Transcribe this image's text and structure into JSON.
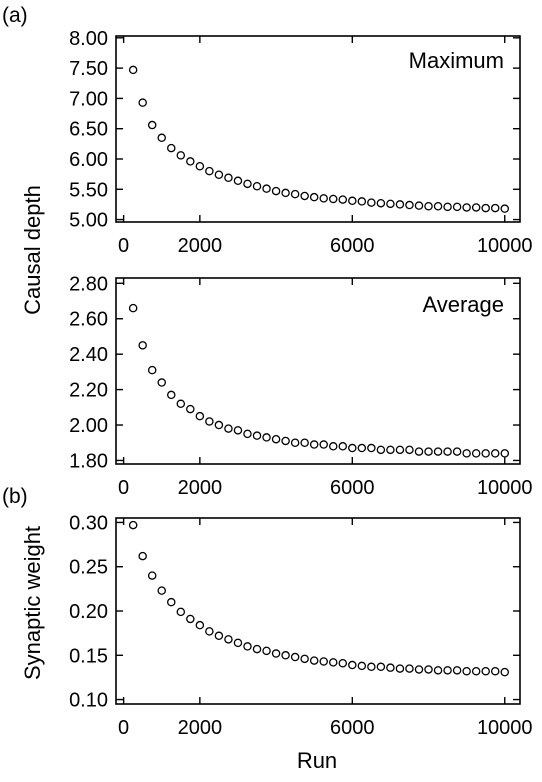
{
  "figure_labels": {
    "a": "(a)",
    "b": "(b)"
  },
  "y_titles": {
    "causal_depth": "Causal depth",
    "synaptic_weight": "Synaptic weight"
  },
  "x_title": "Run",
  "chart_data": [
    {
      "type": "scatter",
      "panel": "a-top",
      "annotation": "Maximum",
      "xlim": [
        -200,
        10400
      ],
      "ylim": [
        4.96,
        8.03
      ],
      "xticks": [
        "0",
        "2000",
        "6000",
        "10000"
      ],
      "xtick_values": [
        0,
        2000,
        6000,
        10000
      ],
      "yticks": [
        "8.00",
        "7.50",
        "7.00",
        "6.50",
        "6.00",
        "5.50",
        "5.00"
      ],
      "ytick_values": [
        8.0,
        7.5,
        7.0,
        6.5,
        6.0,
        5.5,
        5.0
      ],
      "x": [
        250,
        500,
        750,
        1000,
        1250,
        1500,
        1750,
        2000,
        2250,
        2500,
        2750,
        3000,
        3250,
        3500,
        3750,
        4000,
        4250,
        4500,
        4750,
        5000,
        5250,
        5500,
        5750,
        6000,
        6250,
        6500,
        6750,
        7000,
        7250,
        7500,
        7750,
        8000,
        8250,
        8500,
        8750,
        9000,
        9250,
        9500,
        9750,
        10000
      ],
      "y": [
        7.47,
        6.93,
        6.56,
        6.35,
        6.18,
        6.06,
        5.96,
        5.88,
        5.8,
        5.74,
        5.69,
        5.64,
        5.59,
        5.55,
        5.51,
        5.47,
        5.44,
        5.42,
        5.39,
        5.37,
        5.35,
        5.34,
        5.33,
        5.31,
        5.3,
        5.28,
        5.27,
        5.26,
        5.25,
        5.24,
        5.23,
        5.22,
        5.22,
        5.21,
        5.21,
        5.2,
        5.2,
        5.19,
        5.19,
        5.18
      ]
    },
    {
      "type": "scatter",
      "panel": "a-bottom",
      "annotation": "Average",
      "xlim": [
        -200,
        10400
      ],
      "ylim": [
        1.78,
        2.83
      ],
      "xticks": [
        "0",
        "2000",
        "6000",
        "10000"
      ],
      "xtick_values": [
        0,
        2000,
        6000,
        10000
      ],
      "yticks": [
        "2.80",
        "2.60",
        "2.40",
        "2.20",
        "2.00",
        "1.80"
      ],
      "ytick_values": [
        2.8,
        2.6,
        2.4,
        2.2,
        2.0,
        1.8
      ],
      "x": [
        250,
        500,
        750,
        1000,
        1250,
        1500,
        1750,
        2000,
        2250,
        2500,
        2750,
        3000,
        3250,
        3500,
        3750,
        4000,
        4250,
        4500,
        4750,
        5000,
        5250,
        5500,
        5750,
        6000,
        6250,
        6500,
        6750,
        7000,
        7250,
        7500,
        7750,
        8000,
        8250,
        8500,
        8750,
        9000,
        9250,
        9500,
        9750,
        10000
      ],
      "y": [
        2.66,
        2.45,
        2.31,
        2.24,
        2.17,
        2.12,
        2.09,
        2.05,
        2.02,
        2.0,
        1.98,
        1.97,
        1.95,
        1.94,
        1.93,
        1.92,
        1.91,
        1.9,
        1.9,
        1.89,
        1.89,
        1.88,
        1.88,
        1.87,
        1.87,
        1.87,
        1.86,
        1.86,
        1.86,
        1.86,
        1.85,
        1.85,
        1.85,
        1.85,
        1.85,
        1.84,
        1.84,
        1.84,
        1.84,
        1.84
      ]
    },
    {
      "type": "scatter",
      "panel": "b",
      "annotation": "",
      "xlim": [
        -200,
        10400
      ],
      "ylim": [
        0.095,
        0.305
      ],
      "xticks": [
        "0",
        "2000",
        "6000",
        "10000"
      ],
      "xtick_values": [
        0,
        2000,
        6000,
        10000
      ],
      "yticks": [
        "0.30",
        "0.25",
        "0.20",
        "0.15",
        "0.10"
      ],
      "ytick_values": [
        0.3,
        0.25,
        0.2,
        0.15,
        0.1
      ],
      "x": [
        250,
        500,
        750,
        1000,
        1250,
        1500,
        1750,
        2000,
        2250,
        2500,
        2750,
        3000,
        3250,
        3500,
        3750,
        4000,
        4250,
        4500,
        4750,
        5000,
        5250,
        5500,
        5750,
        6000,
        6250,
        6500,
        6750,
        7000,
        7250,
        7500,
        7750,
        8000,
        8250,
        8500,
        8750,
        9000,
        9250,
        9500,
        9750,
        10000
      ],
      "y": [
        0.297,
        0.262,
        0.24,
        0.223,
        0.21,
        0.199,
        0.191,
        0.184,
        0.177,
        0.172,
        0.168,
        0.164,
        0.16,
        0.157,
        0.155,
        0.152,
        0.15,
        0.148,
        0.146,
        0.144,
        0.143,
        0.142,
        0.141,
        0.139,
        0.138,
        0.137,
        0.137,
        0.136,
        0.135,
        0.135,
        0.134,
        0.134,
        0.133,
        0.133,
        0.133,
        0.132,
        0.132,
        0.132,
        0.132,
        0.131
      ]
    }
  ]
}
